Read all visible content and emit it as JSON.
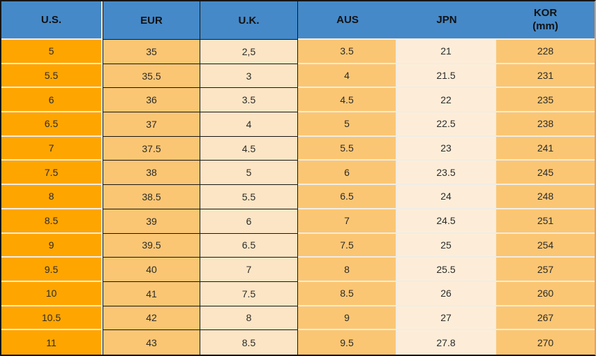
{
  "table": {
    "name": "shoe-size-conversion-table",
    "columns": [
      {
        "key": "us",
        "label": "U.S."
      },
      {
        "key": "eur",
        "label": "EUR"
      },
      {
        "key": "uk",
        "label": "U.K."
      },
      {
        "key": "aus",
        "label": "AUS"
      },
      {
        "key": "jpn",
        "label": "JPN"
      },
      {
        "key": "kor",
        "label": "KOR",
        "label2": "(mm)"
      }
    ],
    "rows": [
      [
        "5",
        "35",
        "2,5",
        "3.5",
        "21",
        "228"
      ],
      [
        "5.5",
        "35.5",
        "3",
        "4",
        "21.5",
        "231"
      ],
      [
        "6",
        "36",
        "3.5",
        "4.5",
        "22",
        "235"
      ],
      [
        "6.5",
        "37",
        "4",
        "5",
        "22.5",
        "238"
      ],
      [
        "7",
        "37.5",
        "4.5",
        "5.5",
        "23",
        "241"
      ],
      [
        "7.5",
        "38",
        "5",
        "6",
        "23.5",
        "245"
      ],
      [
        "8",
        "38.5",
        "5.5",
        "6.5",
        "24",
        "248"
      ],
      [
        "8.5",
        "39",
        "6",
        "7",
        "24.5",
        "251"
      ],
      [
        "9",
        "39.5",
        "6.5",
        "7.5",
        "25",
        "254"
      ],
      [
        "9.5",
        "40",
        "7",
        "8",
        "25.5",
        "257"
      ],
      [
        "10",
        "41",
        "7.5",
        "8.5",
        "26",
        "260"
      ],
      [
        "10.5",
        "42",
        "8",
        "9",
        "27",
        "267"
      ],
      [
        "11",
        "43",
        "8.5",
        "9.5",
        "27.8",
        "270"
      ]
    ]
  },
  "colors": {
    "header_bg": "#4589C8",
    "header_text": "#111111",
    "data_text": "#2B2B2B",
    "us_bg": "#FFA500",
    "light_orange_bg": "#FBC673",
    "cream_bg": "#FCE5C4",
    "pale_bg": "#FDEDD8",
    "separator": "#F0EDE4",
    "border_dark": "#161616",
    "border_right": "#E8A05C"
  }
}
